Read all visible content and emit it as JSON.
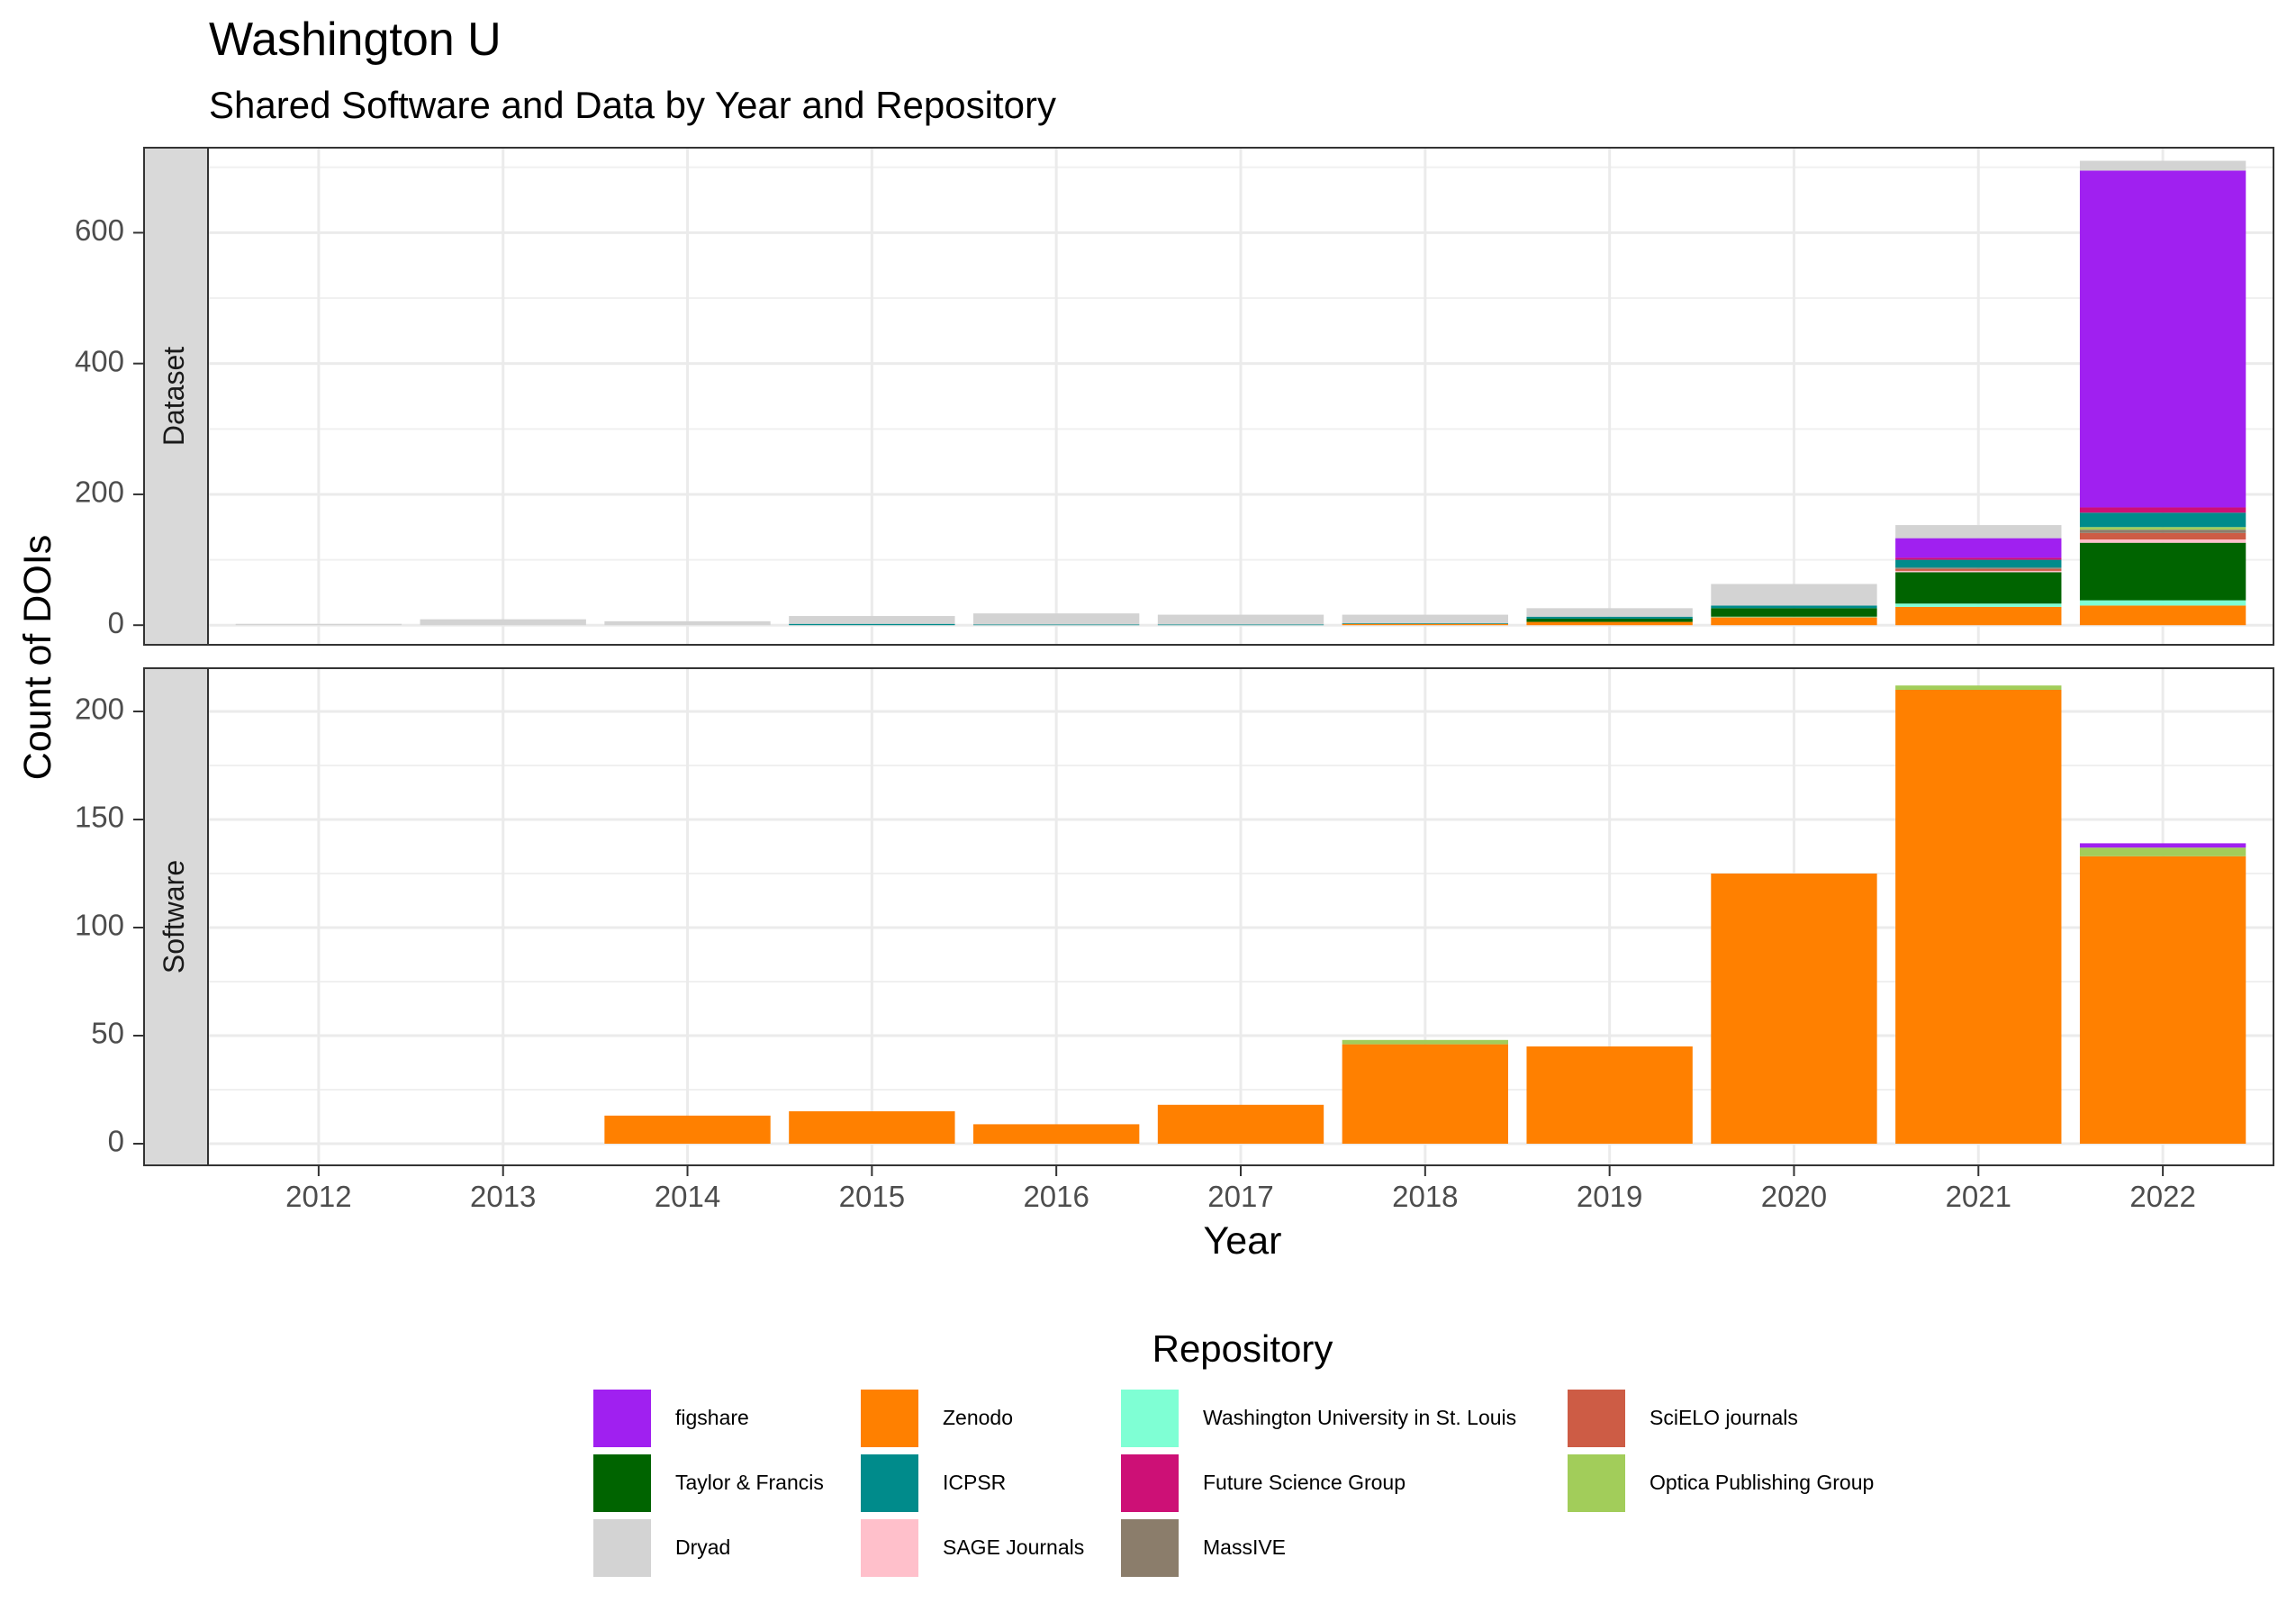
{
  "chart_data": {
    "type": "bar",
    "stacked": true,
    "title": "Washington U",
    "subtitle": "Shared Software and Data by Year and Repository",
    "xlabel": "Year",
    "ylabel": "Count of DOIs",
    "categories": [
      "2012",
      "2013",
      "2014",
      "2015",
      "2016",
      "2017",
      "2018",
      "2019",
      "2020",
      "2021",
      "2022"
    ],
    "grid": true,
    "legend": {
      "title": "Repository",
      "placement": "bottom",
      "columns": [
        [
          {
            "label": "figshare",
            "color": "#A020F0"
          },
          {
            "label": "Taylor & Francis",
            "color": "#006400"
          },
          {
            "label": "Dryad",
            "color": "#D3D3D3"
          }
        ],
        [
          {
            "label": "Zenodo",
            "color": "#FF8000"
          },
          {
            "label": "ICPSR",
            "color": "#008B8B"
          },
          {
            "label": "SAGE Journals",
            "color": "#FFC0CB"
          }
        ],
        [
          {
            "label": "Washington University in St. Louis",
            "color": "#7FFFD4"
          },
          {
            "label": "Future Science Group",
            "color": "#CD1076"
          },
          {
            "label": "MassIVE",
            "color": "#8B7D6B"
          }
        ],
        [
          {
            "label": "SciELO journals",
            "color": "#CD5C45"
          },
          {
            "label": "Optica Publishing Group",
            "color": "#A2CD5A"
          }
        ]
      ]
    },
    "panels": [
      {
        "label": "Dataset",
        "ylim": [
          -30,
          730
        ],
        "yticks": [
          0,
          200,
          400,
          600
        ],
        "series": [
          {
            "name": "Zenodo",
            "color": "#FF8000",
            "values": [
              0,
              0,
              0,
              0,
              0,
              0,
              2,
              5,
              12,
              28,
              30
            ]
          },
          {
            "name": "Washington University in St. Louis",
            "color": "#7FFFD4",
            "values": [
              0,
              0,
              0,
              0,
              0,
              0,
              0,
              0,
              1,
              5,
              8
            ]
          },
          {
            "name": "Taylor & Francis",
            "color": "#006400",
            "values": [
              0,
              0,
              0,
              0,
              0,
              0,
              0,
              5,
              13,
              48,
              88
            ]
          },
          {
            "name": "SAGE Journals",
            "color": "#FFC0CB",
            "values": [
              0,
              0,
              0,
              0,
              0,
              0,
              0,
              0,
              0,
              2,
              5
            ]
          },
          {
            "name": "SciELO journals",
            "color": "#CD5C45",
            "values": [
              0,
              0,
              0,
              0,
              0,
              0,
              0,
              0,
              0,
              3,
              10
            ]
          },
          {
            "name": "MassIVE",
            "color": "#8B7D6B",
            "values": [
              0,
              0,
              0,
              0,
              0,
              0,
              0,
              0,
              0,
              2,
              5
            ]
          },
          {
            "name": "Optica Publishing Group",
            "color": "#A2CD5A",
            "values": [
              0,
              0,
              0,
              0,
              0,
              0,
              0,
              0,
              0,
              0,
              4
            ]
          },
          {
            "name": "ICPSR",
            "color": "#008B8B",
            "values": [
              0,
              0,
              0,
              2,
              1,
              1,
              1,
              3,
              4,
              12,
              22
            ]
          },
          {
            "name": "Future Science Group",
            "color": "#CD1076",
            "values": [
              0,
              0,
              0,
              0,
              0,
              0,
              0,
              0,
              0,
              3,
              8
            ]
          },
          {
            "name": "figshare",
            "color": "#A020F0",
            "values": [
              0,
              0,
              0,
              0,
              0,
              0,
              0,
              0,
              0,
              30,
              515
            ]
          },
          {
            "name": "Dryad",
            "color": "#D3D3D3",
            "values": [
              2,
              9,
              6,
              12,
              17,
              15,
              13,
              13,
              33,
              20,
              15
            ]
          }
        ]
      },
      {
        "label": "Software",
        "ylim": [
          -10,
          220
        ],
        "yticks": [
          0,
          50,
          100,
          150,
          200
        ],
        "series": [
          {
            "name": "Zenodo",
            "color": "#FF8000",
            "values": [
              0,
              0,
              13,
              15,
              9,
              18,
              46,
              45,
              125,
              210,
              133
            ]
          },
          {
            "name": "Optica Publishing Group",
            "color": "#A2CD5A",
            "values": [
              0,
              0,
              0,
              0,
              0,
              0,
              2,
              0,
              0,
              2,
              4
            ]
          },
          {
            "name": "figshare",
            "color": "#A020F0",
            "values": [
              0,
              0,
              0,
              0,
              0,
              0,
              0,
              0,
              0,
              0,
              2
            ]
          }
        ]
      }
    ]
  }
}
